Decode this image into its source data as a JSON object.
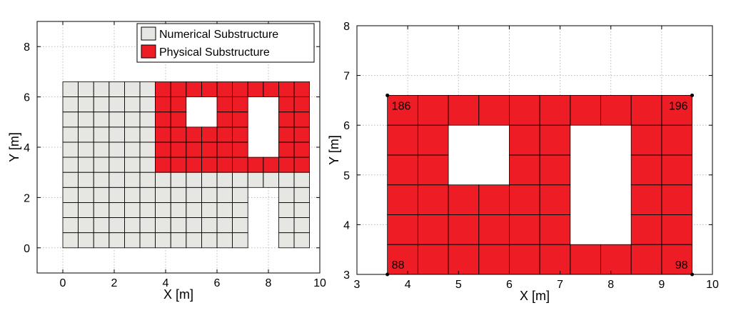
{
  "colors": {
    "numerical": "#e6e6e2",
    "physical": "#ee1c25",
    "mesh_line": "#000000",
    "grid_line": "#b8b8b8",
    "axis": "#000000",
    "background": "#ffffff"
  },
  "legend": {
    "numerical_label": "Numerical Substructure",
    "physical_label": "Physical Substructure"
  },
  "chart_data": [
    {
      "type": "mesh",
      "panel": "left",
      "xlabel": "X [m]",
      "ylabel": "Y [m]",
      "xlim": [
        -1,
        10
      ],
      "ylim": [
        -1,
        9
      ],
      "xticks": [
        0,
        2,
        4,
        6,
        8,
        10
      ],
      "yticks": [
        0,
        2,
        4,
        6,
        8
      ],
      "grid": true,
      "legend_position": "top-right",
      "element_size": [
        0.6,
        0.6
      ],
      "numerical_regions": [
        {
          "x": [
            0,
            3.6
          ],
          "y": [
            0,
            6.6
          ]
        },
        {
          "x": [
            3.6,
            7.2
          ],
          "y": [
            0,
            3.0
          ]
        },
        {
          "x": [
            7.2,
            8.4
          ],
          "y": [
            2.4,
            3.0
          ]
        },
        {
          "x": [
            8.4,
            9.6
          ],
          "y": [
            0,
            3.0
          ]
        }
      ],
      "physical_region": {
        "x": [
          3.6,
          9.6
        ],
        "y": [
          3.0,
          6.6
        ]
      },
      "openings": [
        {
          "x": [
            4.8,
            6.0
          ],
          "y": [
            4.8,
            6.0
          ]
        },
        {
          "x": [
            7.2,
            8.4
          ],
          "y": [
            3.6,
            6.0
          ]
        }
      ]
    },
    {
      "type": "mesh",
      "panel": "right",
      "xlabel": "X [m]",
      "ylabel": "Y [m]",
      "xlim": [
        3,
        10
      ],
      "ylim": [
        3,
        8
      ],
      "xticks": [
        3,
        4,
        5,
        6,
        7,
        8,
        9,
        10
      ],
      "yticks": [
        3,
        4,
        5,
        6,
        7,
        8
      ],
      "grid": true,
      "element_size": [
        0.6,
        0.6
      ],
      "physical_region": {
        "x": [
          3.6,
          9.6
        ],
        "y": [
          3.0,
          6.6
        ]
      },
      "openings": [
        {
          "x": [
            4.8,
            6.0
          ],
          "y": [
            4.8,
            6.0
          ]
        },
        {
          "x": [
            7.2,
            8.4
          ],
          "y": [
            3.6,
            6.0
          ]
        }
      ],
      "corner_nodes": [
        {
          "label": "186",
          "x": 3.6,
          "y": 6.6
        },
        {
          "label": "196",
          "x": 9.6,
          "y": 6.6
        },
        {
          "label": "88",
          "x": 3.6,
          "y": 3.0
        },
        {
          "label": "98",
          "x": 9.6,
          "y": 3.0
        }
      ]
    }
  ]
}
